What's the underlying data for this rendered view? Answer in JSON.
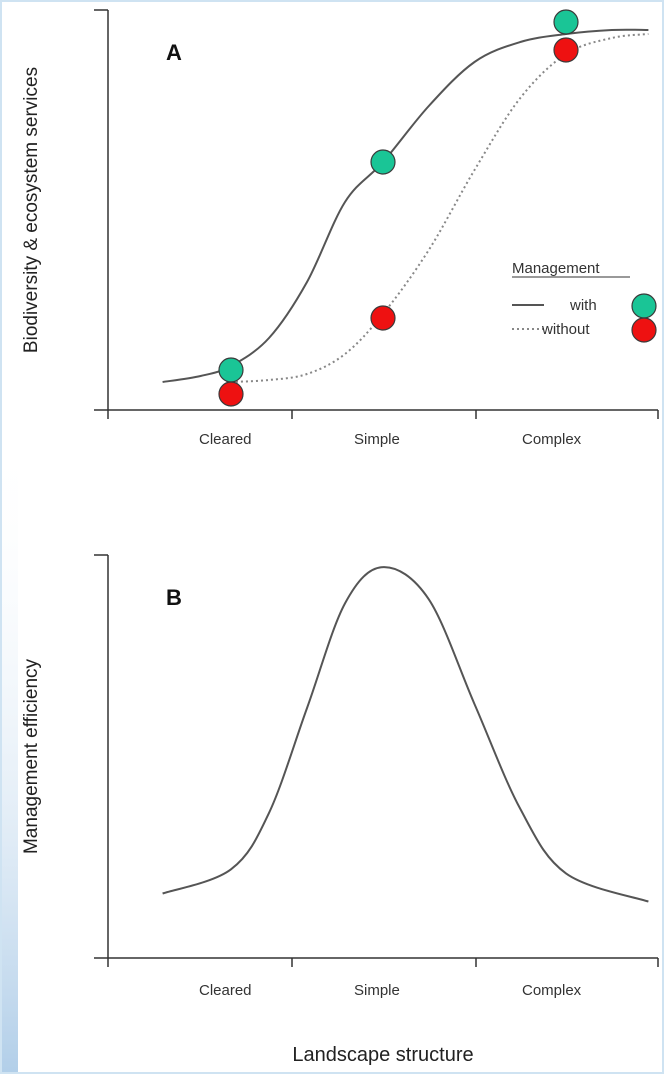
{
  "colors": {
    "with_marker": "#1ac596",
    "without_marker": "#ee1111",
    "curve": "#555555",
    "axis": "#333333"
  },
  "chart_data": [
    {
      "type": "line",
      "panel_label": "A",
      "ylabel": "Biodiversity & ecosystem services",
      "xlabel": "",
      "categories": [
        "Cleared",
        "Simple",
        "Complex"
      ],
      "ylim": [
        0,
        1
      ],
      "legend": {
        "title": "Management",
        "placement": "right",
        "entries": [
          "with",
          "without"
        ]
      },
      "series": [
        {
          "name": "with",
          "style": "solid",
          "curve": {
            "x": [
              -0.45,
              -0.2,
              0.0,
              0.25,
              0.5,
              0.75,
              1.0,
              1.25,
              1.5,
              1.75,
              2.0,
              2.25,
              2.45
            ],
            "y": [
              0.07,
              0.085,
              0.11,
              0.18,
              0.32,
              0.52,
              0.62,
              0.76,
              0.87,
              0.92,
              0.94,
              0.95,
              0.95
            ]
          },
          "points": {
            "x": [
              0,
              1,
              2
            ],
            "y": [
              0.1,
              0.62,
              0.97
            ]
          }
        },
        {
          "name": "without",
          "style": "dotted",
          "curve": {
            "x": [
              0.0,
              0.25,
              0.5,
              0.75,
              1.0,
              1.25,
              1.5,
              1.75,
              2.0,
              2.25,
              2.45
            ],
            "y": [
              0.07,
              0.075,
              0.09,
              0.14,
              0.24,
              0.4,
              0.6,
              0.78,
              0.89,
              0.93,
              0.94
            ]
          },
          "points": {
            "x": [
              0,
              1,
              2
            ],
            "y": [
              0.04,
              0.23,
              0.9
            ]
          }
        }
      ]
    },
    {
      "type": "line",
      "panel_label": "B",
      "ylabel": "Management efficiency",
      "xlabel": "Landscape structure",
      "categories": [
        "Cleared",
        "Simple",
        "Complex"
      ],
      "ylim": [
        0,
        1
      ],
      "series": [
        {
          "style": "solid",
          "curve": {
            "x": [
              -0.45,
              0.0,
              0.25,
              0.5,
              0.75,
              1.0,
              1.25,
              1.5,
              1.75,
              2.0,
              2.45
            ],
            "y": [
              0.16,
              0.22,
              0.36,
              0.62,
              0.88,
              0.97,
              0.89,
              0.63,
              0.37,
              0.21,
              0.14
            ]
          }
        }
      ]
    }
  ]
}
